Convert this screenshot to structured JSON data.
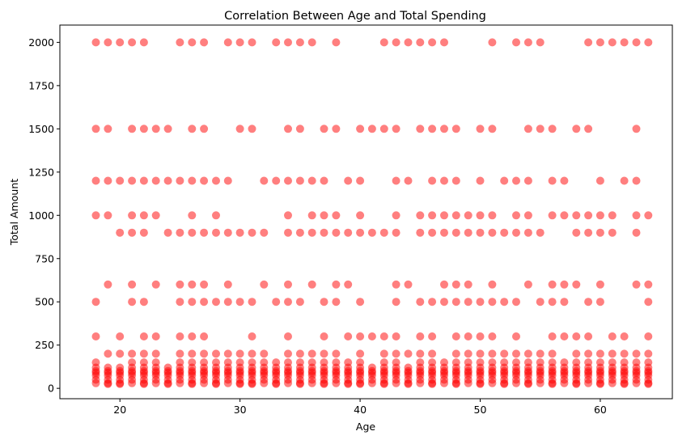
{
  "chart_data": {
    "type": "scatter",
    "title": "Correlation Between Age and Total Spending",
    "xlabel": "Age",
    "ylabel": "Total Amount",
    "xlim": [
      15,
      66
    ],
    "ylim": [
      -60,
      2100
    ],
    "x_ticks": [
      20,
      30,
      40,
      50,
      60
    ],
    "y_ticks": [
      0,
      250,
      500,
      750,
      1000,
      1250,
      1500,
      1750,
      2000
    ],
    "grid": false,
    "legend": "none",
    "marker_color": "#ff0000",
    "marker_alpha": 0.5,
    "ages": [
      18,
      19,
      20,
      21,
      22,
      23,
      24,
      25,
      26,
      27,
      28,
      29,
      30,
      31,
      32,
      33,
      34,
      35,
      36,
      37,
      38,
      39,
      40,
      41,
      42,
      43,
      44,
      45,
      46,
      47,
      48,
      49,
      50,
      51,
      52,
      53,
      54,
      55,
      56,
      57,
      58,
      59,
      60,
      61,
      62,
      63,
      64
    ],
    "amounts": [
      25,
      30,
      50,
      75,
      90,
      100,
      120,
      150,
      200,
      300,
      500,
      600,
      900,
      1000,
      1200,
      1500,
      2000
    ],
    "series": [
      {
        "amount": 2000,
        "x": [
          18,
          19,
          20,
          21,
          22,
          25,
          26,
          27,
          29,
          30,
          31,
          33,
          34,
          35,
          36,
          38,
          42,
          43,
          44,
          45,
          46,
          47,
          51,
          53,
          54,
          55,
          59,
          60,
          61,
          62,
          63,
          64
        ]
      },
      {
        "amount": 1500,
        "x": [
          18,
          19,
          21,
          22,
          23,
          24,
          26,
          27,
          30,
          31,
          34,
          35,
          37,
          38,
          40,
          41,
          42,
          43,
          45,
          46,
          47,
          48,
          50,
          51,
          54,
          55,
          56,
          58,
          59,
          63
        ]
      },
      {
        "amount": 1200,
        "x": [
          18,
          19,
          20,
          21,
          22,
          23,
          24,
          25,
          26,
          27,
          28,
          29,
          32,
          33,
          34,
          35,
          36,
          37,
          39,
          40,
          43,
          44,
          46,
          47,
          48,
          50,
          52,
          53,
          54,
          56,
          57,
          60,
          62,
          63
        ]
      },
      {
        "amount": 1000,
        "x": [
          18,
          19,
          21,
          22,
          23,
          26,
          28,
          34,
          36,
          37,
          38,
          40,
          43,
          45,
          46,
          47,
          48,
          49,
          50,
          51,
          53,
          54,
          56,
          57,
          58,
          59,
          60,
          61,
          63,
          64
        ]
      },
      {
        "amount": 900,
        "x": [
          20,
          21,
          22,
          24,
          25,
          26,
          27,
          28,
          29,
          30,
          31,
          32,
          34,
          35,
          36,
          37,
          38,
          39,
          40,
          41,
          42,
          43,
          45,
          46,
          47,
          48,
          49,
          50,
          51,
          52,
          53,
          54,
          55,
          58,
          59,
          60,
          61,
          63
        ]
      },
      {
        "amount": 600,
        "x": [
          19,
          21,
          23,
          25,
          26,
          27,
          29,
          32,
          34,
          36,
          38,
          39,
          43,
          44,
          47,
          48,
          49,
          51,
          54,
          56,
          57,
          58,
          60,
          63,
          64
        ]
      },
      {
        "amount": 500,
        "x": [
          18,
          21,
          22,
          25,
          26,
          27,
          28,
          29,
          30,
          31,
          33,
          34,
          35,
          37,
          38,
          40,
          43,
          45,
          46,
          47,
          48,
          49,
          50,
          51,
          52,
          53,
          55,
          56,
          57,
          59,
          60,
          64
        ]
      },
      {
        "amount": 300,
        "x": [
          18,
          20,
          22,
          23,
          25,
          26,
          27,
          31,
          34,
          37,
          39,
          40,
          41,
          42,
          43,
          45,
          46,
          48,
          49,
          50,
          51,
          53,
          56,
          57,
          58,
          59,
          61,
          62,
          64
        ]
      },
      {
        "amount": 200,
        "x": [
          19,
          20,
          21,
          22,
          23,
          25,
          26,
          27,
          28,
          29,
          30,
          31,
          32,
          34,
          35,
          36,
          37,
          38,
          40,
          42,
          43,
          44,
          45,
          46,
          48,
          49,
          50,
          51,
          52,
          53,
          54,
          55,
          56,
          58,
          59,
          60,
          61,
          62,
          63,
          64
        ]
      },
      {
        "amount": 150,
        "x": [
          18,
          21,
          22,
          23,
          25,
          26,
          27,
          28,
          29,
          30,
          31,
          32,
          33,
          34,
          35,
          36,
          37,
          38,
          39,
          40,
          42,
          43,
          45,
          46,
          47,
          48,
          49,
          50,
          51,
          52,
          53,
          54,
          55,
          56,
          57,
          58,
          59,
          60,
          61,
          62,
          63,
          64
        ]
      },
      {
        "amount": 120,
        "x": [
          18,
          19,
          20,
          21,
          22,
          23,
          24,
          25,
          26,
          27,
          28,
          29,
          30,
          31,
          32,
          33,
          34,
          35,
          36,
          37,
          38,
          39,
          40,
          41,
          42,
          43,
          44,
          45,
          46,
          47,
          48,
          49,
          50,
          51,
          52,
          53,
          54,
          55,
          56,
          57,
          58,
          59,
          60,
          61,
          62,
          63,
          64
        ]
      },
      {
        "amount": 100,
        "x": [
          18,
          19,
          20,
          21,
          22,
          23,
          24,
          25,
          26,
          27,
          28,
          29,
          30,
          31,
          32,
          33,
          34,
          35,
          36,
          37,
          38,
          39,
          40,
          41,
          42,
          43,
          44,
          45,
          46,
          47,
          48,
          49,
          50,
          51,
          52,
          53,
          54,
          55,
          56,
          57,
          58,
          59,
          60,
          61,
          62,
          63,
          64
        ]
      },
      {
        "amount": 90,
        "x": [
          18,
          19,
          20,
          21,
          22,
          23,
          24,
          25,
          26,
          27,
          28,
          29,
          30,
          31,
          32,
          33,
          34,
          35,
          36,
          37,
          38,
          39,
          40,
          41,
          42,
          43,
          44,
          45,
          46,
          47,
          48,
          49,
          50,
          51,
          52,
          53,
          54,
          55,
          56,
          57,
          58,
          59,
          60,
          61,
          62,
          63,
          64
        ]
      },
      {
        "amount": 75,
        "x": [
          18,
          19,
          20,
          21,
          22,
          23,
          24,
          25,
          26,
          27,
          28,
          29,
          30,
          31,
          32,
          33,
          34,
          35,
          36,
          37,
          38,
          39,
          40,
          41,
          42,
          43,
          44,
          45,
          46,
          47,
          48,
          49,
          50,
          51,
          52,
          53,
          54,
          55,
          56,
          57,
          58,
          59,
          60,
          61,
          62,
          63,
          64
        ]
      },
      {
        "amount": 50,
        "x": [
          18,
          19,
          20,
          21,
          22,
          23,
          24,
          25,
          26,
          27,
          28,
          29,
          30,
          31,
          32,
          33,
          34,
          35,
          36,
          37,
          38,
          39,
          40,
          41,
          42,
          43,
          44,
          45,
          46,
          47,
          48,
          49,
          50,
          51,
          52,
          53,
          54,
          55,
          56,
          57,
          58,
          59,
          60,
          61,
          62,
          63,
          64
        ]
      },
      {
        "amount": 30,
        "x": [
          18,
          19,
          20,
          21,
          22,
          23,
          24,
          25,
          26,
          27,
          28,
          29,
          30,
          31,
          32,
          33,
          34,
          35,
          36,
          37,
          38,
          39,
          40,
          41,
          42,
          43,
          44,
          45,
          46,
          47,
          48,
          49,
          50,
          51,
          52,
          53,
          54,
          55,
          56,
          57,
          58,
          59,
          60,
          61,
          62,
          63,
          64
        ]
      },
      {
        "amount": 25,
        "x": [
          19,
          20,
          22,
          24,
          26,
          28,
          30,
          31,
          33,
          35,
          37,
          39,
          40,
          42,
          44,
          46,
          48,
          50,
          52,
          54,
          56,
          58,
          60,
          62,
          64
        ]
      }
    ]
  }
}
